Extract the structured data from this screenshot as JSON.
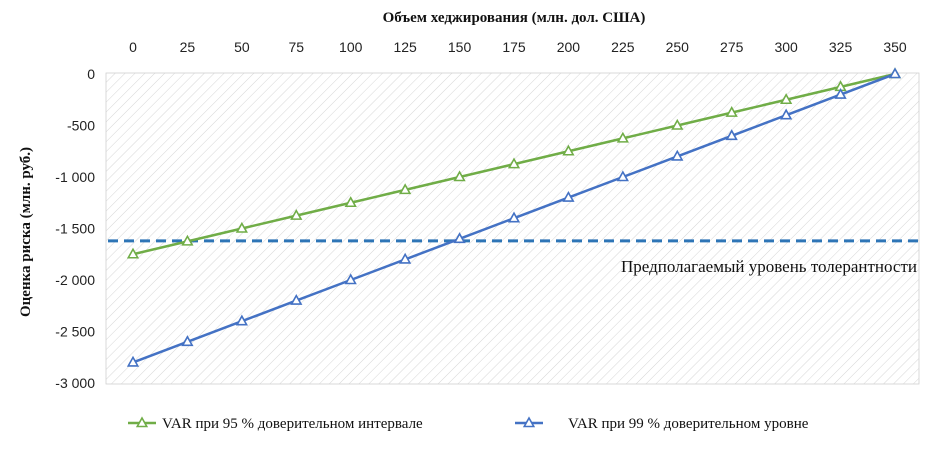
{
  "chart_data": {
    "type": "line",
    "xlabel": "Объем хеджирования (млн. дол. США)",
    "ylabel": "Оценка риска (млн. руб.)",
    "x": [
      0,
      25,
      50,
      75,
      100,
      125,
      150,
      175,
      200,
      225,
      250,
      275,
      300,
      325,
      350
    ],
    "x_tick_labels": [
      "0",
      "25",
      "50",
      "75",
      "100",
      "125",
      "150",
      "175",
      "200",
      "225",
      "250",
      "275",
      "300",
      "325",
      "350"
    ],
    "xlim": [
      0,
      350
    ],
    "x_axis_position": "top",
    "ylim": [
      -3000,
      0
    ],
    "y_ticks": [
      0,
      -500,
      -1000,
      -1500,
      -2000,
      -2500,
      -3000
    ],
    "y_tick_labels": [
      "0",
      "-500",
      "-1 000",
      "-1 500",
      "-2 000",
      "-2 500",
      "-3 000"
    ],
    "plot_background": "diagonal hatch",
    "series": [
      {
        "name": "VAR при 95 % доверительном интервале",
        "color": "#70ad47",
        "marker": "triangle-open",
        "values": [
          -1750,
          -1625,
          -1500,
          -1375,
          -1250,
          -1125,
          -1000,
          -875,
          -750,
          -625,
          -500,
          -375,
          -250,
          -125,
          0
        ]
      },
      {
        "name": "VAR при 99 % доверительном уровне",
        "color": "#4472c4",
        "marker": "triangle-open",
        "values": [
          -2800,
          -2600,
          -2400,
          -2200,
          -2000,
          -1800,
          -1600,
          -1400,
          -1200,
          -1000,
          -800,
          -600,
          -400,
          -200,
          0
        ]
      }
    ],
    "reference_line": {
      "value": -1620,
      "label": "Предполагаемый уровень толерантности",
      "color": "#2e75b6",
      "style": "dashed"
    },
    "legend": "bottom",
    "grid": false
  }
}
